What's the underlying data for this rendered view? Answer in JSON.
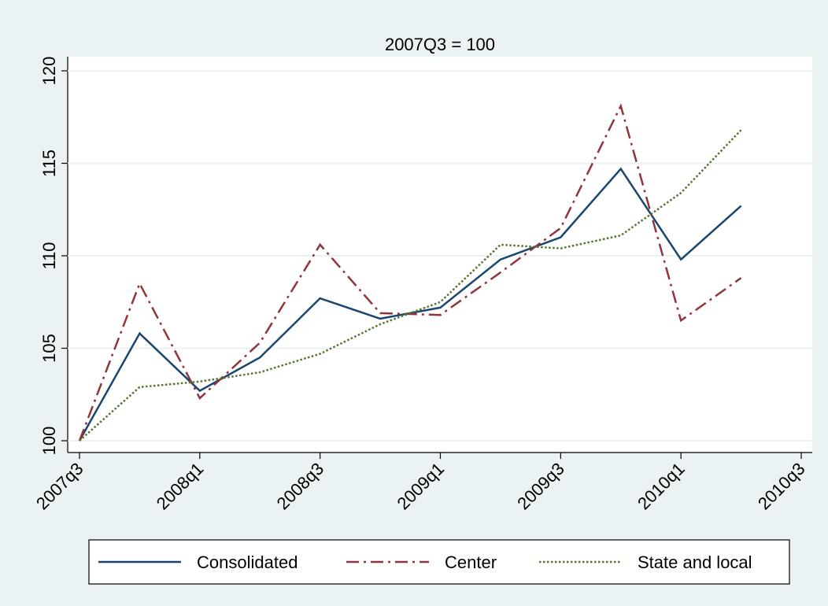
{
  "chart_data": {
    "type": "line",
    "title": "2007Q3 = 100",
    "x": [
      "2007q3",
      "2007q4",
      "2008q1",
      "2008q2",
      "2008q3",
      "2008q4",
      "2009q1",
      "2009q2",
      "2009q3",
      "2009q4",
      "2010q1",
      "2010q2"
    ],
    "xlim": [
      "2007q3",
      "2010q3"
    ],
    "xticks": [
      "2007q3",
      "2008q1",
      "2008q3",
      "2009q1",
      "2009q3",
      "2010q1",
      "2010q3"
    ],
    "ylim": [
      100,
      120
    ],
    "yticks": [
      100,
      105,
      110,
      115,
      120
    ],
    "grid": true,
    "legend": "bottom",
    "series": [
      {
        "name": "Consolidated",
        "color": "#1a476f",
        "line_style": "solid",
        "values": [
          100,
          105.8,
          102.7,
          104.5,
          107.7,
          106.6,
          107.2,
          109.8,
          111.0,
          114.7,
          109.8,
          112.7
        ]
      },
      {
        "name": "Center",
        "color": "#90353b",
        "line_style": "dashdot",
        "values": [
          100,
          108.5,
          102.3,
          105.3,
          110.6,
          106.9,
          106.8,
          109.1,
          111.5,
          118.1,
          106.5,
          108.8
        ]
      },
      {
        "name": "State and local",
        "color": "#55752f",
        "line_style": "dotted",
        "values": [
          100,
          102.9,
          103.2,
          103.7,
          104.7,
          106.3,
          107.5,
          110.6,
          110.4,
          111.1,
          113.4,
          116.8
        ]
      }
    ]
  }
}
